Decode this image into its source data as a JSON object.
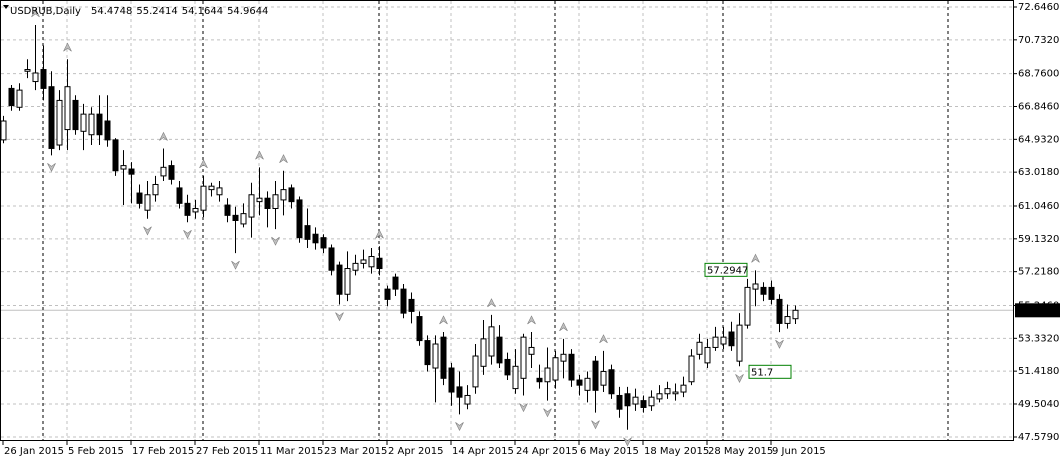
{
  "chart_data": {
    "type": "candlestick",
    "title": "USDRUB,Daily",
    "categories": [
      "26 Jan 2015",
      null,
      null,
      null,
      null,
      null,
      null,
      null,
      "5 Feb 2015",
      null,
      null,
      null,
      null,
      null,
      null,
      null,
      "17 Feb 2015",
      null,
      null,
      null,
      null,
      null,
      null,
      null,
      "27 Feb 2015",
      null,
      null,
      null,
      null,
      null,
      null,
      null,
      "11 Mar 2015",
      null,
      null,
      null,
      null,
      null,
      null,
      null,
      "23 Mar 2015",
      null,
      null,
      null,
      null,
      null,
      null,
      null,
      "2 Apr 2015",
      null,
      null,
      null,
      null,
      null,
      null,
      null,
      "14 Apr 2015",
      null,
      null,
      null,
      null,
      null,
      null,
      null,
      "24 Apr 2015",
      null,
      null,
      null,
      null,
      null,
      null,
      null,
      "6 May 2015",
      null,
      null,
      null,
      null,
      null,
      null,
      null,
      "18 May 2015",
      null,
      null,
      null,
      null,
      null,
      null,
      null,
      "28 May 2015",
      null,
      null,
      null,
      null,
      null,
      null,
      null,
      "9 Jun 2015",
      null,
      null,
      null
    ],
    "open": [
      64.9,
      67.9,
      66.8,
      68.9,
      68.3,
      69.0,
      68.0,
      64.6,
      65.5,
      67.2,
      65.4,
      65.2,
      66.4,
      66.0,
      64.9,
      63.2,
      63.2,
      61.8,
      60.8,
      61.7,
      62.8,
      63.4,
      62.1,
      61.2,
      60.7,
      60.8,
      62.0,
      61.7,
      61.1,
      60.5,
      60.0,
      60.4,
      61.3,
      61.5,
      60.9,
      61.4,
      62.1,
      61.4,
      59.9,
      59.4,
      59.2,
      58.6,
      57.6,
      55.9,
      57.3,
      57.7,
      57.5,
      58.0,
      56.2,
      56.9,
      56.2,
      55.6,
      54.6,
      53.2,
      51.6,
      53.4,
      51.6,
      50.5,
      49.5,
      50.5,
      51.7,
      52.3,
      53.4,
      52.1,
      50.4,
      51.0,
      52.4,
      51.0,
      50.8,
      50.9,
      52.0,
      52.4,
      50.9,
      50.3,
      52.0,
      50.6,
      51.5,
      50.0,
      50.1,
      49.5,
      49.7,
      49.4,
      49.8,
      50.1,
      50.1,
      50.2,
      50.8,
      52.4,
      51.9,
      52.8,
      53.0,
      53.7,
      52.0,
      54.1,
      56.2,
      56.3,
      56.3,
      55.6,
      54.2,
      54.4748
    ],
    "high": [
      66.3,
      68.1,
      68.2,
      69.6,
      71.6,
      70.4,
      68.9,
      67.8,
      69.6,
      67.5,
      67.0,
      66.8,
      67.5,
      67.5,
      65.0,
      64.3,
      63.6,
      62.3,
      62.5,
      62.8,
      64.4,
      63.7,
      62.5,
      61.7,
      61.4,
      62.8,
      62.4,
      62.5,
      61.5,
      61.0,
      61.2,
      62.4,
      63.3,
      61.9,
      62.5,
      63.1,
      62.3,
      61.6,
      60.9,
      59.8,
      59.4,
      58.8,
      57.8,
      58.4,
      58.2,
      58.5,
      58.6,
      58.7,
      56.4,
      57.1,
      56.5,
      56.0,
      54.9,
      53.5,
      53.5,
      53.7,
      51.9,
      51.4,
      50.6,
      53.0,
      54.4,
      54.7,
      54.1,
      52.5,
      52.7,
      53.6,
      53.7,
      51.8,
      52.8,
      52.6,
      53.3,
      52.7,
      51.2,
      51.4,
      52.3,
      52.6,
      51.8,
      50.5,
      50.5,
      50.4,
      50.0,
      50.3,
      50.6,
      50.8,
      50.7,
      51.1,
      52.7,
      53.6,
      53.3,
      54.0,
      54.0,
      54.3,
      54.8,
      56.8,
      57.2947,
      56.6,
      56.7,
      55.9,
      55.3,
      55.2414
    ],
    "low": [
      64.7,
      66.6,
      66.6,
      68.5,
      67.8,
      67.2,
      64.0,
      64.3,
      64.3,
      65.2,
      64.3,
      64.6,
      64.6,
      64.5,
      62.8,
      61.1,
      61.2,
      60.9,
      60.3,
      61.3,
      62.5,
      62.3,
      60.9,
      60.1,
      60.3,
      60.4,
      61.6,
      61.3,
      60.1,
      58.3,
      59.8,
      59.2,
      60.5,
      59.8,
      59.7,
      60.5,
      60.9,
      58.9,
      58.6,
      58.5,
      58.3,
      57.0,
      55.3,
      55.5,
      57.0,
      57.4,
      57.1,
      57.0,
      55.2,
      55.8,
      54.5,
      54.2,
      52.9,
      51.4,
      49.6,
      50.6,
      49.4,
      48.9,
      49.2,
      50.1,
      51.2,
      51.8,
      51.6,
      50.9,
      50.1,
      50.0,
      51.6,
      50.4,
      49.7,
      50.4,
      51.0,
      50.5,
      50.0,
      49.6,
      49.0,
      50.2,
      49.8,
      48.7,
      48.0,
      49.1,
      49.0,
      49.1,
      49.6,
      49.8,
      49.7,
      49.9,
      50.6,
      52.1,
      51.6,
      52.6,
      52.7,
      52.6,
      51.7,
      53.9,
      55.2,
      55.5,
      55.3,
      53.6906,
      53.9,
      54.1644
    ],
    "close": [
      66.0,
      66.9,
      67.8,
      69.0,
      68.8,
      67.9,
      64.4,
      67.2,
      68.0,
      65.5,
      66.4,
      66.4,
      65.2,
      64.9,
      63.1,
      63.4,
      62.9,
      61.2,
      61.7,
      62.3,
      63.3,
      62.6,
      61.2,
      60.5,
      60.9,
      62.2,
      62.2,
      62.1,
      60.5,
      60.2,
      60.6,
      61.7,
      61.5,
      60.9,
      61.7,
      62.0,
      61.3,
      59.2,
      59.1,
      58.9,
      58.6,
      57.3,
      55.9,
      57.4,
      57.7,
      57.9,
      58.1,
      57.4,
      55.6,
      56.2,
      54.8,
      54.9,
      53.2,
      51.8,
      53.0,
      51.0,
      50.2,
      49.9,
      50.0,
      52.3,
      53.3,
      54.0,
      51.9,
      51.2,
      51.7,
      53.4,
      52.8,
      50.8,
      51.6,
      52.2,
      52.4,
      50.9,
      50.6,
      51.0,
      50.3,
      51.4,
      50.1,
      49.2,
      49.4,
      49.9,
      49.3,
      49.9,
      50.1,
      50.4,
      50.2,
      50.6,
      52.3,
      53.1,
      52.8,
      53.4,
      53.4,
      52.9,
      54.1,
      56.3,
      56.5,
      55.9,
      55.6,
      54.2,
      54.6,
      54.9644
    ],
    "ylim": [
      47.579,
      72.646
    ],
    "yticks": [
      {
        "value": 47.579,
        "label": "47.5790"
      },
      {
        "value": 49.504,
        "label": "49.5040"
      },
      {
        "value": 51.418,
        "label": "51.4180"
      },
      {
        "value": 53.332,
        "label": "53.3320"
      },
      {
        "value": 55.246,
        "label": "55.2460"
      },
      {
        "value": 57.218,
        "label": "57.2180"
      },
      {
        "value": 59.132,
        "label": "59.1320"
      },
      {
        "value": 61.046,
        "label": "61.0460"
      },
      {
        "value": 63.018,
        "label": "63.0180"
      },
      {
        "value": 64.932,
        "label": "64.9320"
      },
      {
        "value": 66.846,
        "label": "66.8460"
      },
      {
        "value": 68.76,
        "label": "68.7600"
      },
      {
        "value": 70.732,
        "label": "70.7320"
      },
      {
        "value": 72.646,
        "label": "72.6460"
      }
    ],
    "grid": true,
    "colors": {
      "bull": "#ffffff",
      "bear": "#000000",
      "outline": "#000000",
      "annotation": "#008000"
    }
  }
}
